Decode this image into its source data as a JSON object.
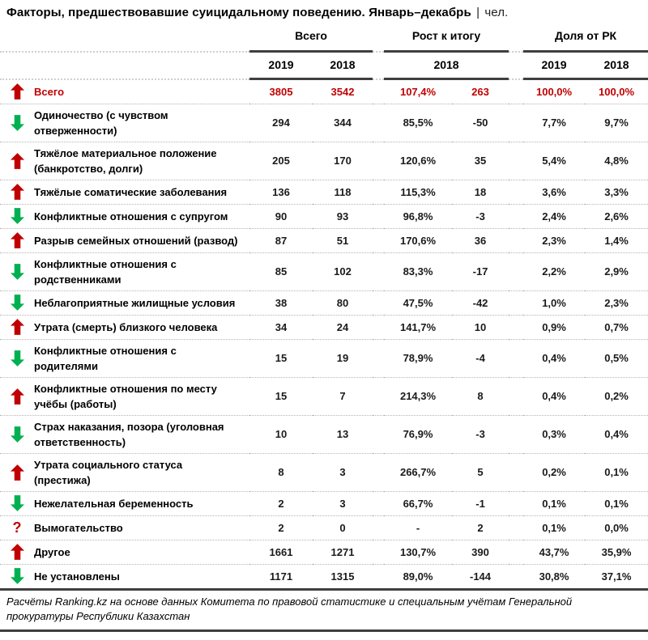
{
  "title": {
    "text": "Факторы, предшествовавшие суицидальному поведению. Январь–декабрь",
    "separator": "|",
    "unit": "чел."
  },
  "header": {
    "groups": [
      {
        "label": "Всего"
      },
      {
        "label": "Рост к итогу"
      },
      {
        "label": "Доля от РК"
      }
    ],
    "years": {
      "vsego": [
        "2019",
        "2018"
      ],
      "rost": "2018",
      "dolya": [
        "2019",
        "2018"
      ]
    }
  },
  "icons": {
    "up": "up-arrow-icon",
    "down": "down-arrow-icon",
    "unknown": "question-mark-icon"
  },
  "colors": {
    "increase_red": "#c00000",
    "decrease_green": "#00b050",
    "line_dark": "#3f3f3f"
  },
  "rows": [
    {
      "trend": "up",
      "highlight": true,
      "label": "Всего",
      "v2019": "3805",
      "v2018": "3542",
      "rost_pct": "107,4%",
      "rost_abs": "263",
      "share2019": "100,0%",
      "share2018": "100,0%"
    },
    {
      "trend": "down",
      "highlight": false,
      "label": "Одиночество (с чувством отверженности)",
      "v2019": "294",
      "v2018": "344",
      "rost_pct": "85,5%",
      "rost_abs": "-50",
      "share2019": "7,7%",
      "share2018": "9,7%"
    },
    {
      "trend": "up",
      "highlight": false,
      "label": "Тяжёлое материальное положение (банкротство, долги)",
      "v2019": "205",
      "v2018": "170",
      "rost_pct": "120,6%",
      "rost_abs": "35",
      "share2019": "5,4%",
      "share2018": "4,8%"
    },
    {
      "trend": "up",
      "highlight": false,
      "label": "Тяжёлые соматические заболевания",
      "v2019": "136",
      "v2018": "118",
      "rost_pct": "115,3%",
      "rost_abs": "18",
      "share2019": "3,6%",
      "share2018": "3,3%"
    },
    {
      "trend": "down",
      "highlight": false,
      "label": "Конфликтные отношения с супругом",
      "v2019": "90",
      "v2018": "93",
      "rost_pct": "96,8%",
      "rost_abs": "-3",
      "share2019": "2,4%",
      "share2018": "2,6%"
    },
    {
      "trend": "up",
      "highlight": false,
      "label": "Разрыв семейных отношений (развод)",
      "v2019": "87",
      "v2018": "51",
      "rost_pct": "170,6%",
      "rost_abs": "36",
      "share2019": "2,3%",
      "share2018": "1,4%"
    },
    {
      "trend": "down",
      "highlight": false,
      "label": "Конфликтные отношения с родственниками",
      "v2019": "85",
      "v2018": "102",
      "rost_pct": "83,3%",
      "rost_abs": "-17",
      "share2019": "2,2%",
      "share2018": "2,9%"
    },
    {
      "trend": "down",
      "highlight": false,
      "label": "Неблагоприятные жилищные условия",
      "v2019": "38",
      "v2018": "80",
      "rost_pct": "47,5%",
      "rost_abs": "-42",
      "share2019": "1,0%",
      "share2018": "2,3%"
    },
    {
      "trend": "up",
      "highlight": false,
      "label": "Утрата (смерть) близкого человека",
      "v2019": "34",
      "v2018": "24",
      "rost_pct": "141,7%",
      "rost_abs": "10",
      "share2019": "0,9%",
      "share2018": "0,7%"
    },
    {
      "trend": "down",
      "highlight": false,
      "label": "Конфликтные отношения с родителями",
      "v2019": "15",
      "v2018": "19",
      "rost_pct": "78,9%",
      "rost_abs": "-4",
      "share2019": "0,4%",
      "share2018": "0,5%"
    },
    {
      "trend": "up",
      "highlight": false,
      "label": "Конфликтные отношения по месту учёбы (работы)",
      "v2019": "15",
      "v2018": "7",
      "rost_pct": "214,3%",
      "rost_abs": "8",
      "share2019": "0,4%",
      "share2018": "0,2%"
    },
    {
      "trend": "down",
      "highlight": false,
      "label": "Страх наказания, позора (уголовная ответственность)",
      "v2019": "10",
      "v2018": "13",
      "rost_pct": "76,9%",
      "rost_abs": "-3",
      "share2019": "0,3%",
      "share2018": "0,4%"
    },
    {
      "trend": "up",
      "highlight": false,
      "label": "Утрата социального статуса (престижа)",
      "v2019": "8",
      "v2018": "3",
      "rost_pct": "266,7%",
      "rost_abs": "5",
      "share2019": "0,2%",
      "share2018": "0,1%"
    },
    {
      "trend": "down",
      "highlight": false,
      "label": "Нежелательная беременность",
      "v2019": "2",
      "v2018": "3",
      "rost_pct": "66,7%",
      "rost_abs": "-1",
      "share2019": "0,1%",
      "share2018": "0,1%"
    },
    {
      "trend": "unknown",
      "highlight": false,
      "label": "Вымогательство",
      "v2019": "2",
      "v2018": "0",
      "rost_pct": "-",
      "rost_abs": "2",
      "share2019": "0,1%",
      "share2018": "0,0%"
    },
    {
      "trend": "up",
      "highlight": false,
      "label": "Другое",
      "v2019": "1661",
      "v2018": "1271",
      "rost_pct": "130,7%",
      "rost_abs": "390",
      "share2019": "43,7%",
      "share2018": "35,9%"
    },
    {
      "trend": "down",
      "highlight": false,
      "label": "Не установлены",
      "v2019": "1171",
      "v2018": "1315",
      "rost_pct": "89,0%",
      "rost_abs": "-144",
      "share2019": "30,8%",
      "share2018": "37,1%"
    }
  ],
  "footer": {
    "text": "Расчёты Ranking.kz на основе данных Комитета по правовой статистике и специальным учётам Генеральной прокуратуры Республики Казахстан"
  }
}
